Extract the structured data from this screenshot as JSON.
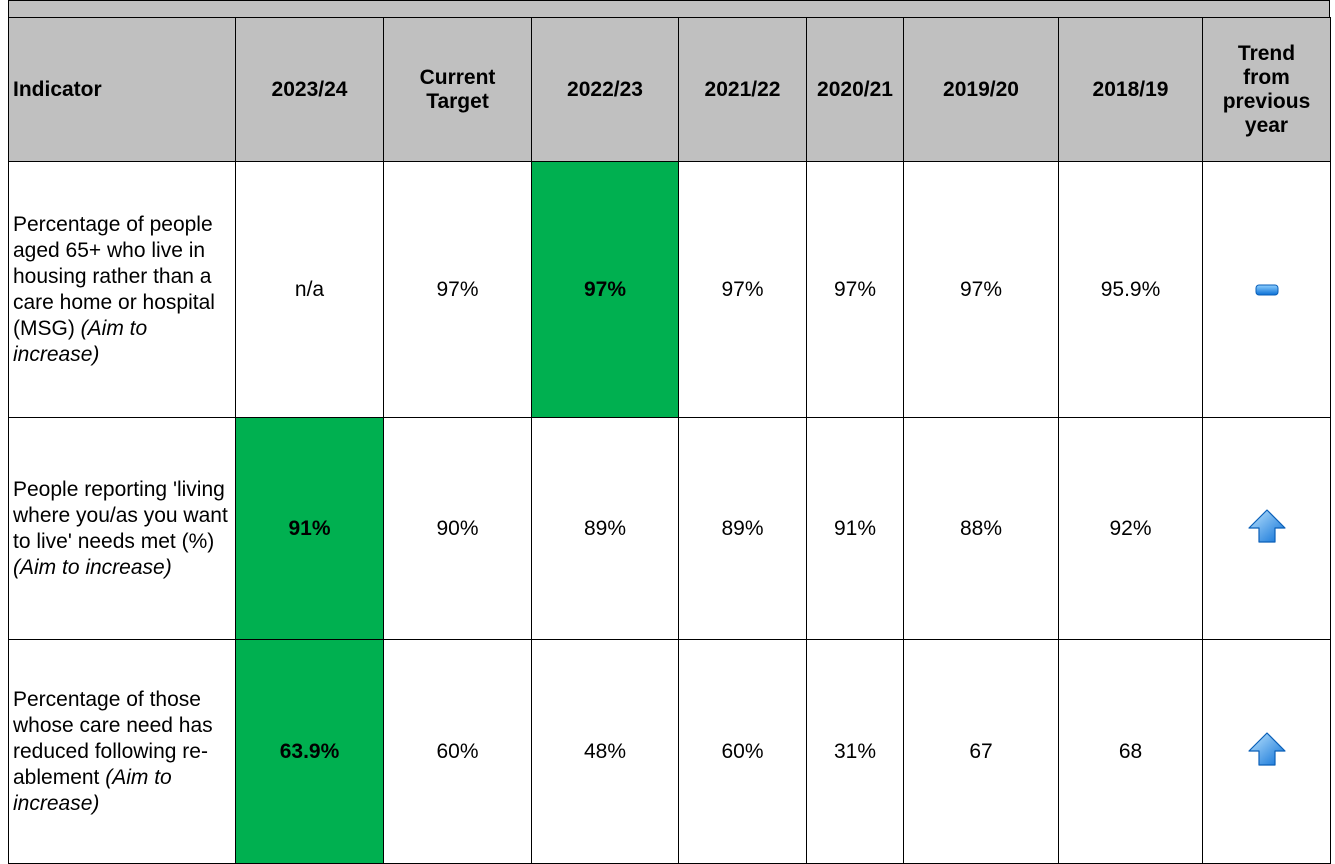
{
  "header": [
    "Indicator",
    "2023/24",
    "Current Target",
    "2022/23",
    "2021/22",
    "2020/21",
    "2019/20",
    "2018/19",
    "Trend from previous year"
  ],
  "rows": [
    {
      "indicator": "Percentage of people aged 65+ who live in housing rather than a care home or hospital (MSG)",
      "aim": "(Aim to increase)",
      "values": [
        "n/a",
        "97%",
        "97%",
        "97%",
        "97%",
        "97%",
        "95.9%"
      ]
    },
    {
      "indicator": "People reporting 'living where you/as you want to live' needs met (%)",
      "aim": "(Aim to increase)",
      "values": [
        "91%",
        "90%",
        "89%",
        "89%",
        "91%",
        "88%",
        "92%"
      ]
    },
    {
      "indicator": "Percentage of those whose care need has reduced following re-ablement",
      "aim": "(Aim to increase)",
      "values": [
        "63.9%",
        "60%",
        "48%",
        "60%",
        "31%",
        "67",
        "68"
      ]
    }
  ]
}
